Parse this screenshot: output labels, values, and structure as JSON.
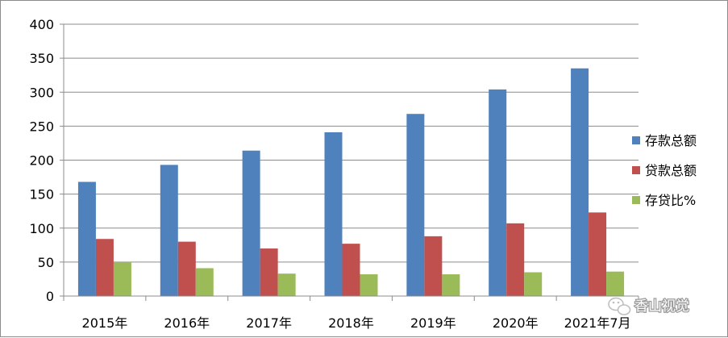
{
  "chart_data": {
    "type": "bar",
    "categories": [
      "2015年",
      "2016年",
      "2017年",
      "2018年",
      "2019年",
      "2020年",
      "2021年7月"
    ],
    "series": [
      {
        "name": "存款总额",
        "color": "#4f81bd",
        "values": [
          168,
          193,
          214,
          241,
          268,
          304,
          335
        ]
      },
      {
        "name": "贷款总额",
        "color": "#c0504d",
        "values": [
          84,
          80,
          70,
          77,
          88,
          107,
          123
        ]
      },
      {
        "name": "存贷比%",
        "color": "#9bbb59",
        "values": [
          50,
          41,
          33,
          32,
          32,
          35,
          36
        ]
      }
    ],
    "ylim": [
      0,
      400
    ],
    "yticks": [
      0,
      50,
      100,
      150,
      200,
      250,
      300,
      350,
      400
    ],
    "grid": true,
    "legend": "right",
    "title": "",
    "xlabel": "",
    "ylabel": ""
  },
  "watermark": {
    "text": "香山视觉",
    "icon": "wechat-icon"
  }
}
